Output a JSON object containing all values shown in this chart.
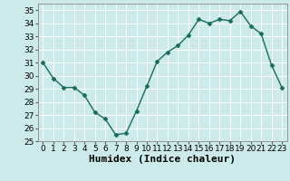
{
  "x": [
    0,
    1,
    2,
    3,
    4,
    5,
    6,
    7,
    8,
    9,
    10,
    11,
    12,
    13,
    14,
    15,
    16,
    17,
    18,
    19,
    20,
    21,
    22,
    23
  ],
  "y": [
    31.0,
    29.8,
    29.1,
    29.1,
    28.5,
    27.2,
    26.7,
    25.5,
    25.6,
    27.3,
    29.2,
    31.1,
    31.8,
    32.3,
    33.1,
    34.3,
    34.0,
    34.3,
    34.2,
    34.9,
    33.8,
    33.2,
    30.8,
    29.1
  ],
  "line_color": "#1a6b5a",
  "marker": "D",
  "marker_size": 2.5,
  "bg_color": "#cceaea",
  "grid_color": "#ffffff",
  "xlabel": "Humidex (Indice chaleur)",
  "xlim": [
    -0.5,
    23.5
  ],
  "ylim": [
    25,
    35.5
  ],
  "yticks": [
    25,
    26,
    27,
    28,
    29,
    30,
    31,
    32,
    33,
    34,
    35
  ],
  "xtick_labels": [
    "0",
    "1",
    "2",
    "3",
    "4",
    "5",
    "6",
    "7",
    "8",
    "9",
    "10",
    "11",
    "12",
    "13",
    "14",
    "15",
    "16",
    "17",
    "18",
    "19",
    "20",
    "21",
    "22",
    "23"
  ],
  "tick_fontsize": 6.5,
  "xlabel_fontsize": 8,
  "linewidth": 1.0
}
